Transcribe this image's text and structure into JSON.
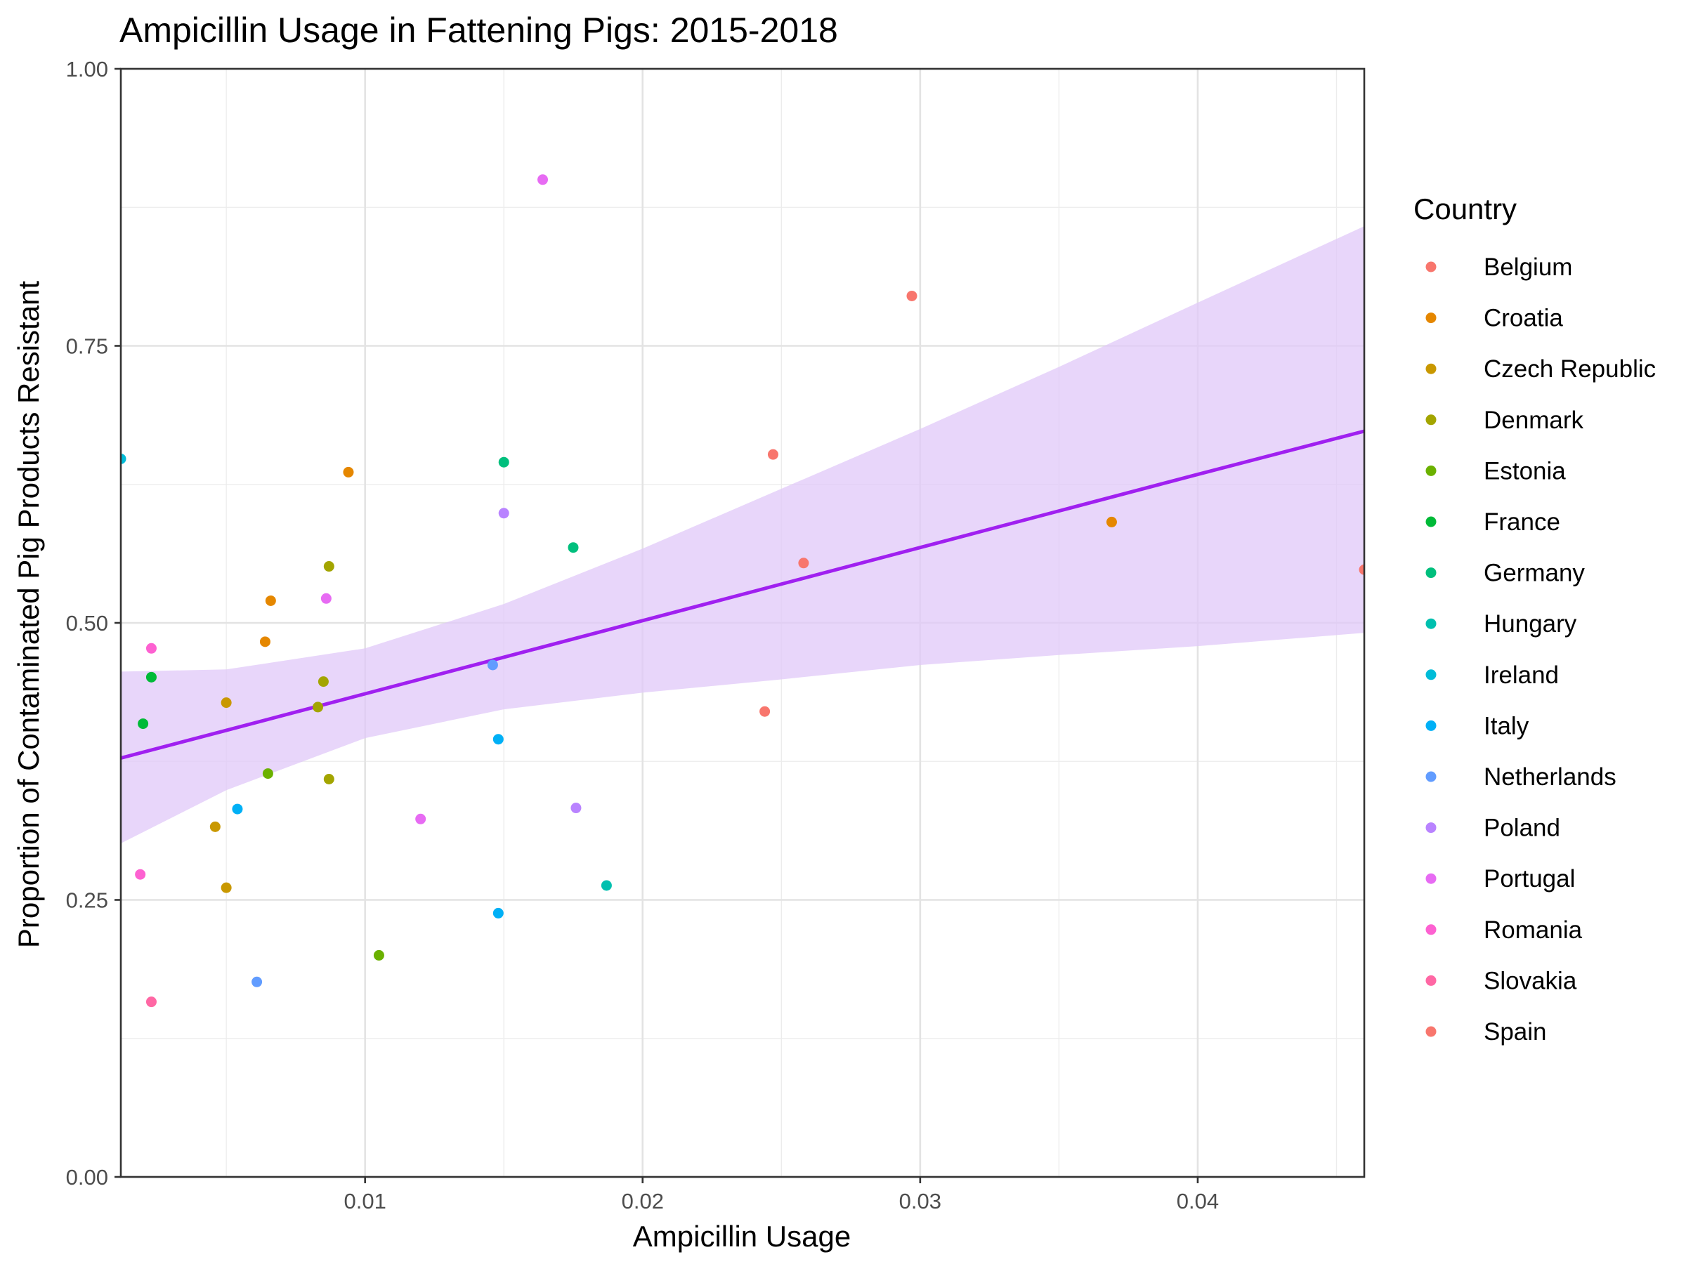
{
  "chart_data": {
    "type": "scatter",
    "title": "Ampicillin Usage in Fattening Pigs: 2015-2018",
    "xlabel": "Ampicillin Usage",
    "ylabel": "Proportion of Contaminated Pig Products Resistant",
    "xlim": [
      0.0012,
      0.046
    ],
    "ylim": [
      0.0,
      1.0
    ],
    "x_ticks": [
      0.01,
      0.02,
      0.03,
      0.04
    ],
    "x_tick_labels": [
      "0.01",
      "0.02",
      "0.03",
      "0.04"
    ],
    "y_ticks": [
      0.0,
      0.25,
      0.5,
      0.75,
      1.0
    ],
    "y_tick_labels": [
      "0.00",
      "0.25",
      "0.50",
      "0.75",
      "1.00"
    ],
    "grid": true,
    "legend": {
      "title": "Country",
      "placement": "right"
    },
    "series": [
      {
        "name": "Belgium",
        "color": "#F8766D",
        "points": [
          {
            "x": 0.0247,
            "y": 0.652
          },
          {
            "x": 0.0258,
            "y": 0.554
          },
          {
            "x": 0.0244,
            "y": 0.42
          }
        ]
      },
      {
        "name": "Croatia",
        "color": "#E58700",
        "points": [
          {
            "x": 0.0094,
            "y": 0.636
          },
          {
            "x": 0.0066,
            "y": 0.52
          },
          {
            "x": 0.0064,
            "y": 0.483
          },
          {
            "x": 0.0369,
            "y": 0.591
          }
        ]
      },
      {
        "name": "Czech Republic",
        "color": "#C99800",
        "points": [
          {
            "x": 0.005,
            "y": 0.428
          },
          {
            "x": 0.0046,
            "y": 0.316
          },
          {
            "x": 0.005,
            "y": 0.261
          }
        ]
      },
      {
        "name": "Denmark",
        "color": "#A3A500",
        "points": [
          {
            "x": 0.0087,
            "y": 0.551
          },
          {
            "x": 0.0085,
            "y": 0.447
          },
          {
            "x": 0.0083,
            "y": 0.424
          },
          {
            "x": 0.0087,
            "y": 0.359
          }
        ]
      },
      {
        "name": "Estonia",
        "color": "#6BB100",
        "points": [
          {
            "x": 0.0065,
            "y": 0.364
          },
          {
            "x": 0.0105,
            "y": 0.2
          }
        ]
      },
      {
        "name": "France",
        "color": "#00BA38",
        "points": [
          {
            "x": 0.0023,
            "y": 0.451
          },
          {
            "x": 0.002,
            "y": 0.409
          }
        ]
      },
      {
        "name": "Germany",
        "color": "#00BF7D",
        "points": [
          {
            "x": 0.015,
            "y": 0.645
          },
          {
            "x": 0.0175,
            "y": 0.568
          }
        ]
      },
      {
        "name": "Hungary",
        "color": "#00C0AF",
        "points": [
          {
            "x": 0.0187,
            "y": 0.263
          }
        ]
      },
      {
        "name": "Ireland",
        "color": "#00BCD8",
        "points": [
          {
            "x": 0.0012,
            "y": 0.648
          }
        ]
      },
      {
        "name": "Italy",
        "color": "#00B0F6",
        "points": [
          {
            "x": 0.0148,
            "y": 0.395
          },
          {
            "x": 0.0054,
            "y": 0.332
          },
          {
            "x": 0.0148,
            "y": 0.238
          }
        ]
      },
      {
        "name": "Netherlands",
        "color": "#619CFF",
        "points": [
          {
            "x": 0.0146,
            "y": 0.462
          },
          {
            "x": 0.0061,
            "y": 0.176
          }
        ]
      },
      {
        "name": "Poland",
        "color": "#B983FF",
        "points": [
          {
            "x": 0.015,
            "y": 0.599
          },
          {
            "x": 0.0176,
            "y": 0.333
          }
        ]
      },
      {
        "name": "Portugal",
        "color": "#E76BF3",
        "points": [
          {
            "x": 0.0164,
            "y": 0.9
          },
          {
            "x": 0.0086,
            "y": 0.522
          },
          {
            "x": 0.012,
            "y": 0.323
          }
        ]
      },
      {
        "name": "Romania",
        "color": "#FD61D1",
        "points": [
          {
            "x": 0.0023,
            "y": 0.477
          },
          {
            "x": 0.0019,
            "y": 0.273
          }
        ]
      },
      {
        "name": "Slovakia",
        "color": "#FF67A4",
        "points": [
          {
            "x": 0.0023,
            "y": 0.158
          }
        ]
      },
      {
        "name": "Spain",
        "color": "#F8766D",
        "points": [
          {
            "x": 0.0297,
            "y": 0.795
          },
          {
            "x": 0.046,
            "y": 0.548
          }
        ]
      }
    ],
    "trend": {
      "method": "linear",
      "color": "#A020F0",
      "band_color": "#E0C8F8",
      "points": [
        {
          "x": 0.0012,
          "y": 0.378,
          "lower": 0.301,
          "upper": 0.456
        },
        {
          "x": 0.005,
          "y": 0.403,
          "lower": 0.349,
          "upper": 0.458
        },
        {
          "x": 0.01,
          "y": 0.436,
          "lower": 0.396,
          "upper": 0.477
        },
        {
          "x": 0.015,
          "y": 0.469,
          "lower": 0.422,
          "upper": 0.517
        },
        {
          "x": 0.02,
          "y": 0.502,
          "lower": 0.437,
          "upper": 0.567
        },
        {
          "x": 0.025,
          "y": 0.535,
          "lower": 0.449,
          "upper": 0.621
        },
        {
          "x": 0.03,
          "y": 0.568,
          "lower": 0.462,
          "upper": 0.675
        },
        {
          "x": 0.035,
          "y": 0.601,
          "lower": 0.471,
          "upper": 0.731
        },
        {
          "x": 0.04,
          "y": 0.634,
          "lower": 0.479,
          "upper": 0.789
        },
        {
          "x": 0.046,
          "y": 0.673,
          "lower": 0.491,
          "upper": 0.858
        }
      ]
    }
  }
}
